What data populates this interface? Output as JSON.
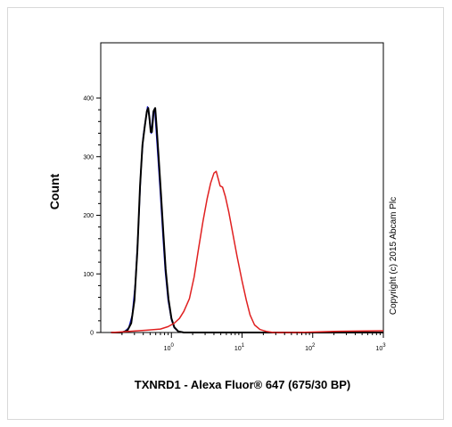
{
  "chart_data": {
    "type": "line",
    "xlabel": "TXNRD1 - Alexa Fluor® 647 (675/30 BP)",
    "ylabel": "Count",
    "xscale": "log",
    "xlim": [
      0.1,
      1000
    ],
    "ylim": [
      0,
      400
    ],
    "grid": false,
    "yticks": [
      {
        "value": 0,
        "label": "0"
      },
      {
        "value": 100,
        "label": "100"
      },
      {
        "value": 200,
        "label": "200"
      },
      {
        "value": 300,
        "label": "300"
      },
      {
        "value": 400,
        "label": "400"
      }
    ],
    "xticks": [
      {
        "value": 1,
        "base": "10",
        "exp": "0"
      },
      {
        "value": 10,
        "base": "10",
        "exp": "1"
      },
      {
        "value": 100,
        "base": "10",
        "exp": "2"
      },
      {
        "value": 1000,
        "base": "10",
        "exp": "3"
      }
    ],
    "annotation": "Copyright (c) 2015 Abcam Plc",
    "series": [
      {
        "color": "#1a1adc",
        "width": 1.5,
        "points": [
          [
            0.14,
            0
          ],
          [
            0.18,
            0
          ],
          [
            0.22,
            2
          ],
          [
            0.25,
            8
          ],
          [
            0.28,
            30
          ],
          [
            0.31,
            85
          ],
          [
            0.34,
            175
          ],
          [
            0.37,
            275
          ],
          [
            0.4,
            335
          ],
          [
            0.43,
            362
          ],
          [
            0.46,
            385
          ],
          [
            0.48,
            374
          ],
          [
            0.5,
            352
          ],
          [
            0.52,
            340
          ],
          [
            0.55,
            375
          ],
          [
            0.58,
            382
          ],
          [
            0.61,
            345
          ],
          [
            0.65,
            295
          ],
          [
            0.7,
            235
          ],
          [
            0.76,
            165
          ],
          [
            0.82,
            105
          ],
          [
            0.9,
            55
          ],
          [
            1.0,
            22
          ],
          [
            1.1,
            8
          ],
          [
            1.25,
            2
          ],
          [
            1.5,
            0
          ],
          [
            2.0,
            0
          ],
          [
            1000,
            0
          ]
        ]
      },
      {
        "color": "#000000",
        "width": 2,
        "points": [
          [
            0.14,
            0
          ],
          [
            0.2,
            0
          ],
          [
            0.24,
            4
          ],
          [
            0.27,
            16
          ],
          [
            0.3,
            55
          ],
          [
            0.33,
            140
          ],
          [
            0.36,
            250
          ],
          [
            0.39,
            320
          ],
          [
            0.42,
            352
          ],
          [
            0.45,
            378
          ],
          [
            0.47,
            383
          ],
          [
            0.49,
            365
          ],
          [
            0.51,
            342
          ],
          [
            0.53,
            342
          ],
          [
            0.56,
            378
          ],
          [
            0.59,
            383
          ],
          [
            0.62,
            348
          ],
          [
            0.66,
            300
          ],
          [
            0.71,
            238
          ],
          [
            0.77,
            168
          ],
          [
            0.83,
            108
          ],
          [
            0.91,
            57
          ],
          [
            1.0,
            24
          ],
          [
            1.1,
            9
          ],
          [
            1.25,
            2
          ],
          [
            1.5,
            0
          ],
          [
            3.0,
            0
          ],
          [
            1000,
            0
          ]
        ]
      },
      {
        "color": "#e02020",
        "width": 1.5,
        "points": [
          [
            0.14,
            0
          ],
          [
            0.25,
            2
          ],
          [
            0.45,
            4
          ],
          [
            0.7,
            6
          ],
          [
            0.9,
            10
          ],
          [
            1.1,
            16
          ],
          [
            1.3,
            24
          ],
          [
            1.5,
            36
          ],
          [
            1.8,
            58
          ],
          [
            2.1,
            95
          ],
          [
            2.4,
            140
          ],
          [
            2.8,
            190
          ],
          [
            3.2,
            228
          ],
          [
            3.6,
            255
          ],
          [
            4.0,
            272
          ],
          [
            4.3,
            275
          ],
          [
            4.6,
            262
          ],
          [
            4.9,
            250
          ],
          [
            5.3,
            248
          ],
          [
            5.8,
            232
          ],
          [
            6.5,
            205
          ],
          [
            7.5,
            165
          ],
          [
            8.5,
            130
          ],
          [
            10,
            88
          ],
          [
            11.5,
            55
          ],
          [
            13,
            30
          ],
          [
            15,
            13
          ],
          [
            18,
            5
          ],
          [
            22,
            2
          ],
          [
            28,
            0
          ],
          [
            60,
            0
          ],
          [
            200,
            2
          ],
          [
            1000,
            3
          ]
        ]
      }
    ]
  }
}
